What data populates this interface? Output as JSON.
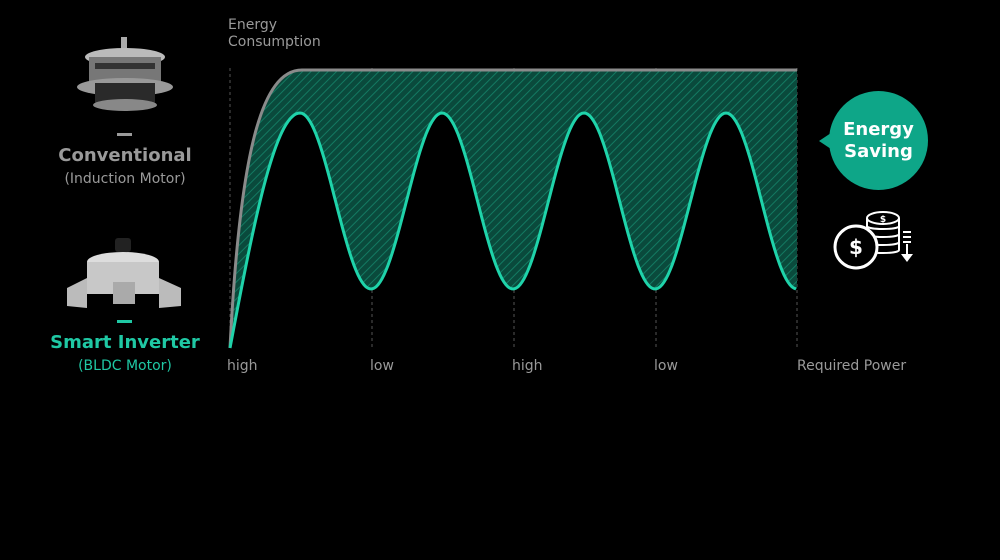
{
  "conventional": {
    "title": "Conventional",
    "subtitle": "(Induction Motor)",
    "color": "#9a9a9a"
  },
  "smart_inverter": {
    "title": "Smart Inverter",
    "subtitle": "(BLDC Motor)",
    "color": "#1fc8a4"
  },
  "diagram": {
    "y_axis_label_line1": "Energy",
    "y_axis_label_line2": "Consumption",
    "x_ticks": [
      "high",
      "low",
      "high",
      "low",
      "Required Power"
    ],
    "conventional_line_color": "#8a8a8a",
    "inverter_line_color": "#1fd3aa",
    "saving_fill_color": "#0b5a48"
  },
  "callout": {
    "line1": "Energy",
    "line2": "Saving",
    "color": "#0ea688",
    "icon": "coins-dollar-down-icon"
  }
}
